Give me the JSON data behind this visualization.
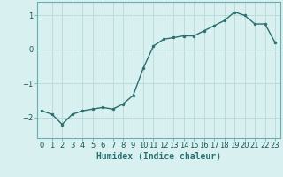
{
  "x": [
    0,
    1,
    2,
    3,
    4,
    5,
    6,
    7,
    8,
    9,
    10,
    11,
    12,
    13,
    14,
    15,
    16,
    17,
    18,
    19,
    20,
    21,
    22,
    23
  ],
  "y": [
    -1.8,
    -1.9,
    -2.2,
    -1.9,
    -1.8,
    -1.75,
    -1.7,
    -1.75,
    -1.6,
    -1.35,
    -0.55,
    0.1,
    0.3,
    0.35,
    0.4,
    0.4,
    0.55,
    0.7,
    0.85,
    1.1,
    1.0,
    0.75,
    0.75,
    0.2
  ],
  "line_color": "#2a6e6e",
  "marker": "o",
  "markersize": 2.0,
  "linewidth": 1.0,
  "background_color": "#d8f0f0",
  "grid_color": "#b8dada",
  "xlabel": "Humidex (Indice chaleur)",
  "xlabel_fontsize": 7,
  "yticks": [
    -2,
    -1,
    0,
    1
  ],
  "ylim": [
    -2.6,
    1.4
  ],
  "xlim": [
    -0.5,
    23.5
  ],
  "xtick_labels": [
    "0",
    "1",
    "2",
    "3",
    "4",
    "5",
    "6",
    "7",
    "8",
    "9",
    "10",
    "11",
    "12",
    "13",
    "14",
    "15",
    "16",
    "17",
    "18",
    "19",
    "20",
    "21",
    "22",
    "23"
  ],
  "tick_fontsize": 6,
  "spine_color": "#6aafaf"
}
